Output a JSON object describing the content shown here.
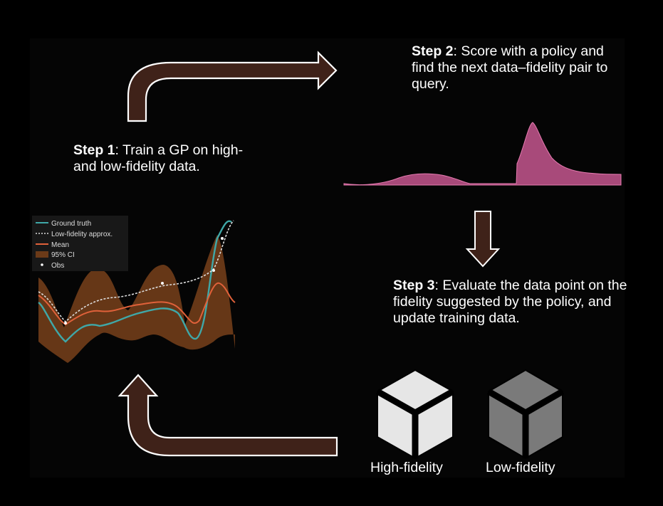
{
  "steps": {
    "step1": {
      "label": "Step 1",
      "text": ": Train a GP on high- and low-fidelity data."
    },
    "step2": {
      "label": "Step 2",
      "text": ": Score with a policy and find the next data–fidelity pair to query."
    },
    "step3": {
      "label": "Step 3",
      "text": ": Evaluate the data point on the fidelity suggested by the policy, and update training data."
    }
  },
  "legend": {
    "ground_truth": "Ground truth",
    "low_fidelity": "Low-fidelity approx.",
    "mean": "Mean",
    "ci": "95% CI",
    "obs": "Obs"
  },
  "fidelity_options": {
    "high": "High-fidelity",
    "low": "Low-fidelity"
  },
  "colors": {
    "arrow_fill": "#3f2219",
    "arrow_stroke": "#ffffff",
    "ground_truth": "#3fa8a8",
    "mean": "#e0613a",
    "ci_band": "#6b3a18",
    "acquisition": "#a84a7a",
    "cube_high": "#e6e6e6",
    "cube_low": "#7a7a7a"
  },
  "icons": {
    "flow_arrows": [
      "curved-arrow-right",
      "arrow-down",
      "curved-arrow-up"
    ],
    "cubes": [
      "high-fidelity-cube-icon",
      "low-fidelity-cube-icon"
    ]
  }
}
